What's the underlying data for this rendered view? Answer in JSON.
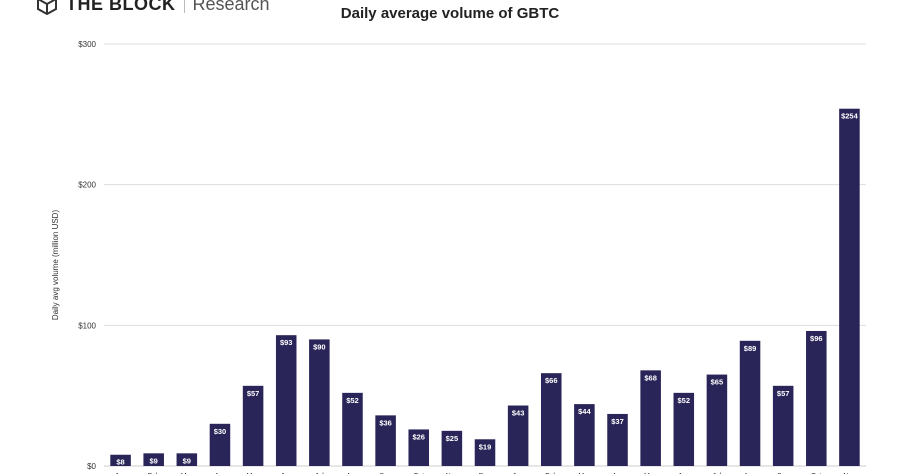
{
  "brand": {
    "name": "THE BLOCK",
    "subtitle": "Research"
  },
  "colors": {
    "bar": "#2a2559",
    "grid": "#dddddd",
    "axis": "#cccccc"
  },
  "chart_data": {
    "type": "bar",
    "title": "Daily average volume of GBTC",
    "xlabel": "",
    "ylabel": "Daily avg volume (million USD)",
    "ylim": [
      0,
      300
    ],
    "yticks": [
      0,
      100,
      200,
      300
    ],
    "ytick_labels": [
      "$0",
      "$100",
      "$200",
      "$300"
    ],
    "grid": true,
    "categories": [
      "Jan",
      "Feb",
      "Mar",
      "Apr",
      "May",
      "Jun",
      "Jul",
      "Aug",
      "Sep",
      "Oct",
      "Nov",
      "Dec",
      "Jan",
      "Feb",
      "Mar",
      "Apr",
      "May",
      "Jun",
      "Jul",
      "Aug",
      "Sep",
      "Oct",
      "Nov"
    ],
    "values": [
      8,
      9,
      9,
      30,
      57,
      93,
      90,
      52,
      36,
      26,
      25,
      19,
      43,
      66,
      44,
      37,
      68,
      52,
      65,
      89,
      57,
      96,
      254
    ],
    "data_labels": [
      "$8",
      "$9",
      "$9",
      "$30",
      "$57",
      "$93",
      "$90",
      "$52",
      "$36",
      "$26",
      "$25",
      "$19",
      "$43",
      "$66",
      "$44",
      "$37",
      "$68",
      "$52",
      "$65",
      "$89",
      "$57",
      "$96",
      "$254"
    ]
  }
}
